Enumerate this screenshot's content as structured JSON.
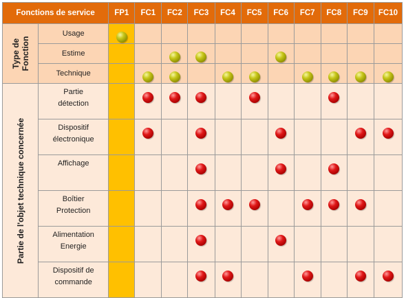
{
  "header": {
    "title": "Fonctions de service",
    "columns": [
      "FP1",
      "FC1",
      "FC2",
      "FC3",
      "FC4",
      "FC5",
      "FC6",
      "FC7",
      "FC8",
      "FC9",
      "FC10"
    ]
  },
  "groups": {
    "type_fonction": "Type de Fonction",
    "partie_objet": "Partie de l'objet technique concernée"
  },
  "type_rows": [
    {
      "label": "Usage",
      "marks": [
        "green",
        "",
        "",
        "",
        "",
        "",
        "",
        "",
        "",
        "",
        ""
      ]
    },
    {
      "label": "Estime",
      "marks": [
        "",
        "",
        "green",
        "green",
        "",
        "",
        "green",
        "",
        "",
        "",
        ""
      ]
    },
    {
      "label": "Technique",
      "marks": [
        "",
        "green",
        "green",
        "",
        "green",
        "green",
        "",
        "green",
        "green",
        "green",
        "green"
      ]
    }
  ],
  "part_rows": [
    {
      "label_line1": "Partie",
      "label_line2": "détection",
      "marks": [
        "",
        "red",
        "red",
        "red",
        "",
        "red",
        "",
        "",
        "red",
        "",
        ""
      ]
    },
    {
      "label_line1": "Dispositif",
      "label_line2": "électronique",
      "marks": [
        "",
        "red",
        "",
        "red",
        "",
        "",
        "red",
        "",
        "",
        "red",
        "red"
      ]
    },
    {
      "label_line1": "Affichage",
      "label_line2": "",
      "marks": [
        "",
        "",
        "",
        "red",
        "",
        "",
        "red",
        "",
        "red",
        "",
        ""
      ]
    },
    {
      "label_line1": "Boîtier",
      "label_line2": "Protection",
      "marks": [
        "",
        "",
        "",
        "red",
        "red",
        "red",
        "",
        "red",
        "red",
        "red",
        ""
      ]
    },
    {
      "label_line1": "Alimentation",
      "label_line2": "Energie",
      "marks": [
        "",
        "",
        "",
        "red",
        "",
        "",
        "red",
        "",
        "",
        "",
        ""
      ]
    },
    {
      "label_line1": "Dispositif de",
      "label_line2": "commande",
      "marks": [
        "",
        "",
        "",
        "red",
        "red",
        "",
        "",
        "red",
        "",
        "red",
        "red"
      ]
    }
  ],
  "colors": {
    "header_bg": "#e26b0a",
    "fp1_column": "#ffc000",
    "type_rows_bg": "#fcd5b4",
    "part_rows_bg": "#fde9d9",
    "green_dot": "#b5b51a",
    "red_dot": "#cc0000"
  }
}
